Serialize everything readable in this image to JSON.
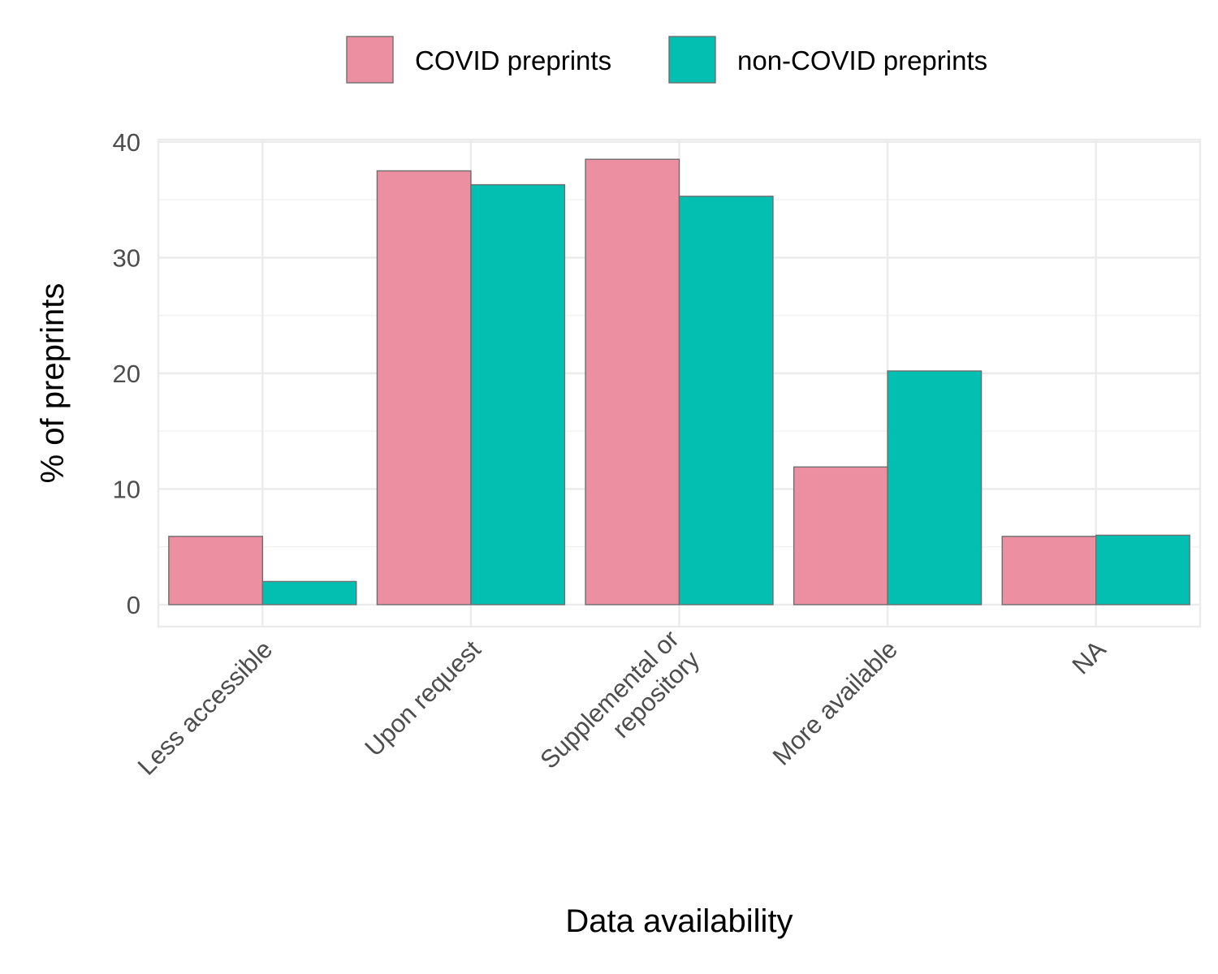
{
  "chart_data": {
    "type": "bar",
    "categories": [
      [
        "Less accessible"
      ],
      [
        "Upon request"
      ],
      [
        "Supplemental or",
        "repository"
      ],
      [
        "More available"
      ],
      [
        "NA"
      ]
    ],
    "series": [
      {
        "name": "COVID preprints",
        "color": "#ec8fa0",
        "values": [
          5.9,
          37.5,
          38.5,
          11.9,
          5.9
        ]
      },
      {
        "name": "non-COVID preprints",
        "color": "#03bfb2",
        "values": [
          2.0,
          36.3,
          35.3,
          20.2,
          6.0
        ]
      }
    ],
    "xlabel": "Data availability",
    "ylabel": "% of preprints",
    "ylim": [
      -1.9,
      40.2
    ],
    "yticks": [
      0,
      10,
      20,
      30,
      40
    ],
    "grid": true,
    "legend_position": "top"
  }
}
